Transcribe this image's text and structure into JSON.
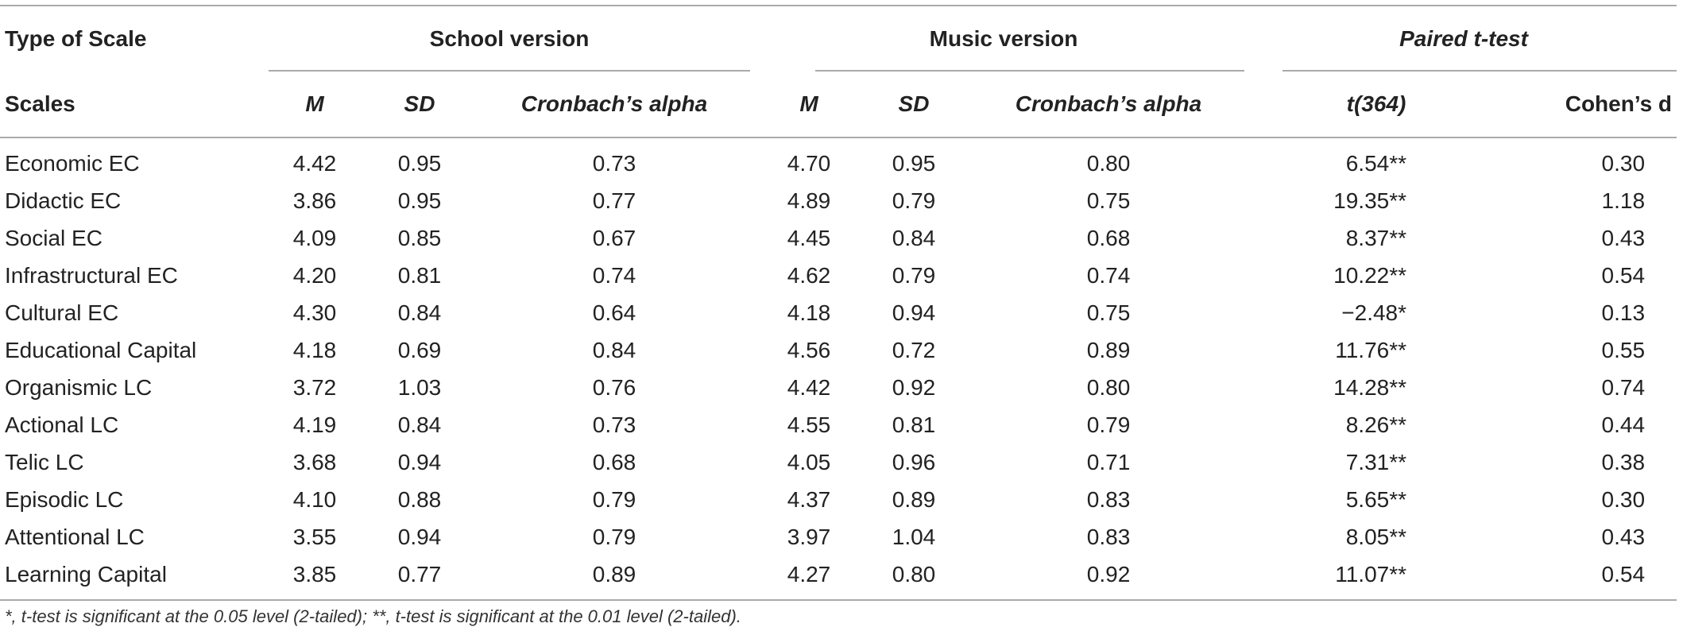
{
  "table": {
    "group_headers": {
      "type_of_scale": "Type of Scale",
      "school_version": "School version",
      "music_version": "Music version",
      "paired_ttest": "Paired t-test"
    },
    "sub_headers": {
      "scales": "Scales",
      "m": "M",
      "sd": "SD",
      "alpha": "Cronbach’s alpha",
      "t": "t(364)",
      "d": "Cohen’s d"
    },
    "rows": [
      {
        "scale": "Economic EC",
        "s_m": "4.42",
        "s_sd": "0.95",
        "s_alpha": "0.73",
        "m_m": "4.70",
        "m_sd": "0.95",
        "m_alpha": "0.80",
        "t": "6.54**",
        "d": "0.30"
      },
      {
        "scale": "Didactic EC",
        "s_m": "3.86",
        "s_sd": "0.95",
        "s_alpha": "0.77",
        "m_m": "4.89",
        "m_sd": "0.79",
        "m_alpha": "0.75",
        "t": "19.35**",
        "d": "1.18"
      },
      {
        "scale": "Social EC",
        "s_m": "4.09",
        "s_sd": "0.85",
        "s_alpha": "0.67",
        "m_m": "4.45",
        "m_sd": "0.84",
        "m_alpha": "0.68",
        "t": "8.37**",
        "d": "0.43"
      },
      {
        "scale": "Infrastructural EC",
        "s_m": "4.20",
        "s_sd": "0.81",
        "s_alpha": "0.74",
        "m_m": "4.62",
        "m_sd": "0.79",
        "m_alpha": "0.74",
        "t": "10.22**",
        "d": "0.54"
      },
      {
        "scale": "Cultural EC",
        "s_m": "4.30",
        "s_sd": "0.84",
        "s_alpha": "0.64",
        "m_m": "4.18",
        "m_sd": "0.94",
        "m_alpha": "0.75",
        "t": "−2.48*",
        "d": "0.13"
      },
      {
        "scale": "Educational Capital",
        "s_m": "4.18",
        "s_sd": "0.69",
        "s_alpha": "0.84",
        "m_m": "4.56",
        "m_sd": "0.72",
        "m_alpha": "0.89",
        "t": "11.76**",
        "d": "0.55"
      },
      {
        "scale": "Organismic LC",
        "s_m": "3.72",
        "s_sd": "1.03",
        "s_alpha": "0.76",
        "m_m": "4.42",
        "m_sd": "0.92",
        "m_alpha": "0.80",
        "t": "14.28**",
        "d": "0.74"
      },
      {
        "scale": "Actional LC",
        "s_m": "4.19",
        "s_sd": "0.84",
        "s_alpha": "0.73",
        "m_m": "4.55",
        "m_sd": "0.81",
        "m_alpha": "0.79",
        "t": "8.26**",
        "d": "0.44"
      },
      {
        "scale": "Telic LC",
        "s_m": "3.68",
        "s_sd": "0.94",
        "s_alpha": "0.68",
        "m_m": "4.05",
        "m_sd": "0.96",
        "m_alpha": "0.71",
        "t": "7.31**",
        "d": "0.38"
      },
      {
        "scale": "Episodic LC",
        "s_m": "4.10",
        "s_sd": "0.88",
        "s_alpha": "0.79",
        "m_m": "4.37",
        "m_sd": "0.89",
        "m_alpha": "0.83",
        "t": "5.65**",
        "d": "0.30"
      },
      {
        "scale": "Attentional LC",
        "s_m": "3.55",
        "s_sd": "0.94",
        "s_alpha": "0.79",
        "m_m": "3.97",
        "m_sd": "1.04",
        "m_alpha": "0.83",
        "t": "8.05**",
        "d": "0.43"
      },
      {
        "scale": "Learning Capital",
        "s_m": "3.85",
        "s_sd": "0.77",
        "s_alpha": "0.89",
        "m_m": "4.27",
        "m_sd": "0.80",
        "m_alpha": "0.92",
        "t": "11.07**",
        "d": "0.54"
      }
    ]
  },
  "footnote": "*, t-test is significant at the 0.05 level (2-tailed); **, t-test is significant at the 0.01 level (2-tailed)."
}
